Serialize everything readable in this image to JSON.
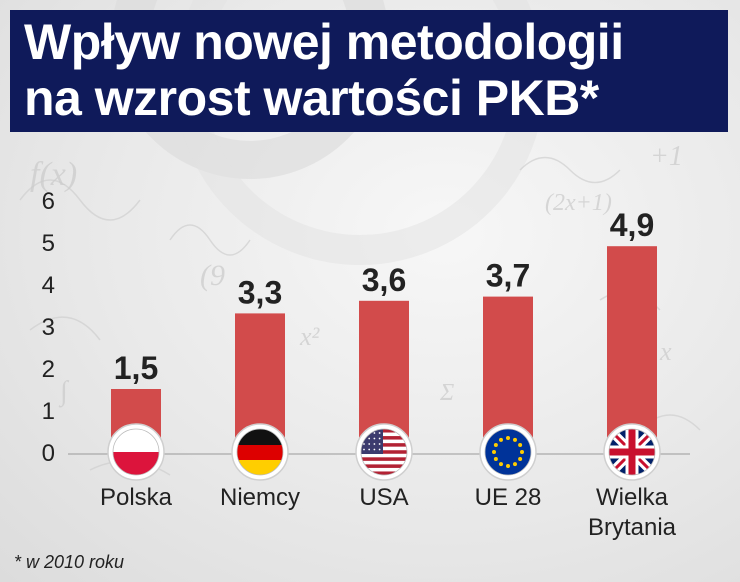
{
  "title": {
    "line1": "Wpływ nowej metodologii",
    "line2": "na wzrost wartości PKB*"
  },
  "footnote": "* w 2010 roku",
  "colors": {
    "bar": "#d24b4b",
    "title_bg": "#0f1a5a",
    "text": "#222222"
  },
  "chart_data": {
    "type": "bar",
    "categories": [
      "Polska",
      "Niemcy",
      "USA",
      "UE 28",
      "Wielka Brytania"
    ],
    "category_lines": [
      [
        "Polska"
      ],
      [
        "Niemcy"
      ],
      [
        "USA"
      ],
      [
        "UE 28"
      ],
      [
        "Wielka",
        "Brytania"
      ]
    ],
    "values": [
      1.5,
      3.3,
      3.6,
      3.7,
      4.9
    ],
    "value_labels": [
      "1,5",
      "3,3",
      "3,6",
      "3,7",
      "4,9"
    ],
    "flag_icons": [
      "poland-flag-icon",
      "germany-flag-icon",
      "usa-flag-icon",
      "eu-flag-icon",
      "uk-flag-icon"
    ],
    "yticks": [
      0,
      1,
      2,
      3,
      4,
      5,
      6
    ],
    "ylim": [
      0,
      6
    ],
    "grid": false,
    "title": "Wpływ nowej metodologii na wzrost wartości PKB*"
  }
}
